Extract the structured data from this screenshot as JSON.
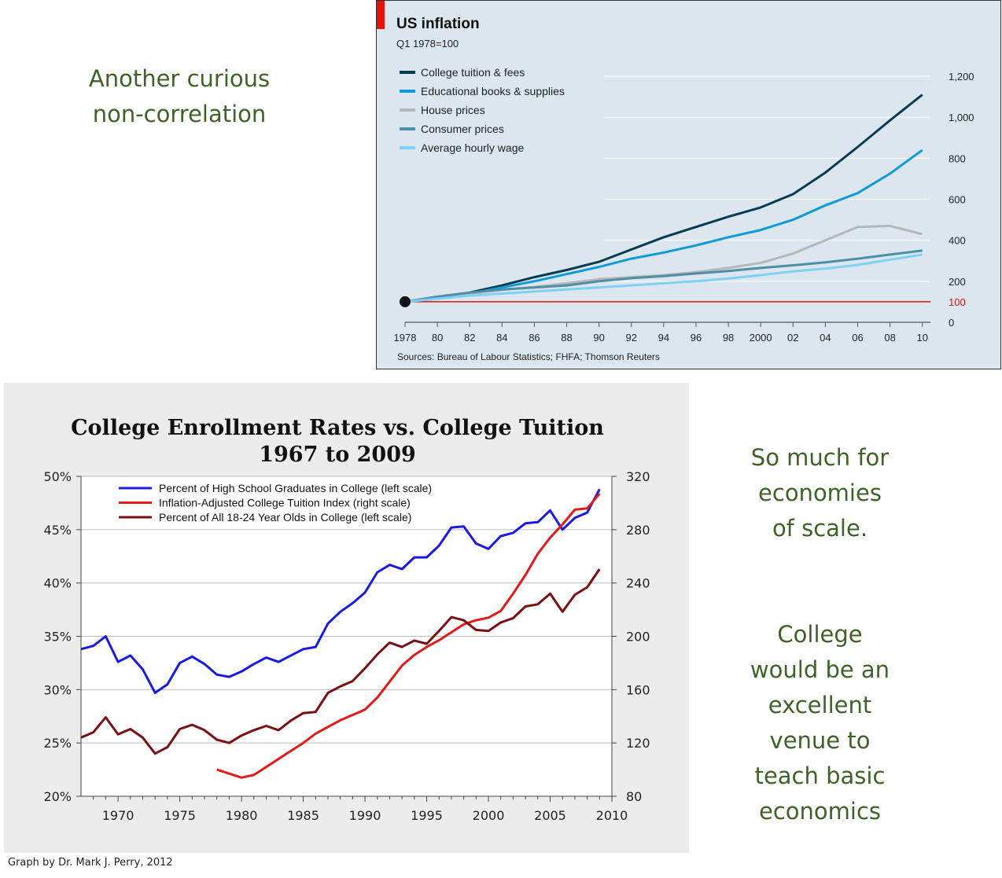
{
  "slide": {
    "heading_top": [
      "Another curious",
      "non-correlation"
    ],
    "heading_scale": [
      "So much for",
      "economies",
      "of scale."
    ],
    "heading_college": [
      "College",
      "would be an",
      "excellent",
      "venue to",
      "teach basic",
      "economics"
    ],
    "footer_credit": "Graph by Dr. Mark J. Perry, 2012"
  },
  "colors": {
    "heading_green": "#3f6228",
    "economist_bg": "#dbe6ee",
    "economist_red": "#e3120b",
    "tuition": "#073b52",
    "books": "#0f9ad7",
    "house": "#b5b7b9",
    "consumer": "#4f8ea6",
    "wage": "#7fd1f3",
    "hs_blue": "#1a1ae6",
    "tuition_red": "#e31a1a",
    "all_maroon": "#7a0f14"
  },
  "chart_data": [
    {
      "type": "line",
      "title": "US inflation",
      "subtitle": "Q1 1978=100",
      "source": "Sources: Bureau of Labour Statistics; FHFA; Thomson Reuters",
      "x": [
        1978,
        1980,
        1982,
        1984,
        1986,
        1988,
        1990,
        1992,
        1994,
        1996,
        1998,
        2000,
        2002,
        2004,
        2006,
        2008,
        2010
      ],
      "xticks": [
        "1978",
        "80",
        "82",
        "84",
        "86",
        "88",
        "90",
        "92",
        "94",
        "96",
        "98",
        "2000",
        "02",
        "04",
        "06",
        "08",
        "10"
      ],
      "yticks": [
        "0",
        "100",
        "200",
        "400",
        "600",
        "800",
        "1,000",
        "1,200"
      ],
      "ylim": [
        0,
        1200
      ],
      "xlim": [
        1978,
        2010.5
      ],
      "reference_line": 100,
      "legend_position": "top-left",
      "series": [
        {
          "name": "College tuition & fees",
          "color": "#073b52",
          "values": [
            100,
            118,
            145,
            180,
            220,
            255,
            295,
            355,
            415,
            465,
            515,
            560,
            625,
            730,
            855,
            985,
            1110
          ]
        },
        {
          "name": "Educational books & supplies",
          "color": "#0f9ad7",
          "values": [
            100,
            115,
            140,
            170,
            200,
            235,
            270,
            310,
            340,
            375,
            415,
            450,
            500,
            570,
            630,
            725,
            840
          ]
        },
        {
          "name": "House prices",
          "color": "#b5b7b9",
          "values": [
            100,
            118,
            140,
            158,
            172,
            190,
            210,
            220,
            230,
            245,
            265,
            290,
            335,
            400,
            465,
            470,
            430
          ]
        },
        {
          "name": "Consumer prices",
          "color": "#4f8ea6",
          "values": [
            100,
            125,
            145,
            160,
            170,
            180,
            200,
            215,
            225,
            238,
            250,
            265,
            278,
            292,
            310,
            330,
            350
          ]
        },
        {
          "name": "Average hourly wage",
          "color": "#7fd1f3",
          "values": [
            100,
            115,
            130,
            140,
            150,
            160,
            170,
            180,
            190,
            200,
            213,
            230,
            248,
            262,
            280,
            305,
            330
          ]
        }
      ]
    },
    {
      "type": "line",
      "title": "College Enrollment Rates vs. College Tuition",
      "subtitle": "1967 to 2009",
      "x_ticks": [
        "1970",
        "1975",
        "1980",
        "1985",
        "1990",
        "1995",
        "2000",
        "2005",
        "2010"
      ],
      "xlim": [
        1967,
        2010
      ],
      "y_left_ticks": [
        "20%",
        "25%",
        "30%",
        "35%",
        "40%",
        "45%",
        "50%"
      ],
      "y_left_lim": [
        20,
        50
      ],
      "y_right_ticks": [
        "80",
        "120",
        "160",
        "200",
        "240",
        "280",
        "320"
      ],
      "y_right_lim": [
        80,
        320
      ],
      "legend_position": "top-left",
      "series": [
        {
          "name": "Percent of High School Graduates in College (left scale)",
          "axis": "left",
          "color": "#1a1ae6",
          "start": 1967,
          "values": [
            33.8,
            34.1,
            35.0,
            32.6,
            33.2,
            31.9,
            29.7,
            30.5,
            32.5,
            33.1,
            32.4,
            31.4,
            31.2,
            31.7,
            32.4,
            33.0,
            32.6,
            33.2,
            33.8,
            34.0,
            36.2,
            37.3,
            38.1,
            39.1,
            41.0,
            41.7,
            41.3,
            42.4,
            42.4,
            43.5,
            45.2,
            45.3,
            43.7,
            43.2,
            44.4,
            44.7,
            45.6,
            45.7,
            46.8,
            45.0,
            46.1,
            46.6,
            48.8
          ]
        },
        {
          "name": "Inflation-Adjusted College Tuition Index (right scale)",
          "axis": "right",
          "color": "#e31a1a",
          "start": 1978,
          "values": [
            100,
            97,
            94,
            96,
            102,
            108,
            114,
            120,
            127,
            132,
            137,
            141,
            145,
            154,
            166,
            178,
            186,
            192,
            197,
            203,
            209,
            212,
            214,
            219,
            232,
            246,
            262,
            274,
            284,
            295,
            296,
            307
          ]
        },
        {
          "name": "Percent of All 18-24 Year Olds in College (left scale)",
          "axis": "left",
          "color": "#7a0f14",
          "start": 1967,
          "values": [
            25.5,
            26.0,
            27.4,
            25.8,
            26.3,
            25.5,
            24.0,
            24.6,
            26.3,
            26.7,
            26.2,
            25.3,
            25.0,
            25.7,
            26.2,
            26.6,
            26.2,
            27.1,
            27.8,
            27.9,
            29.7,
            30.3,
            30.8,
            32.0,
            33.3,
            34.4,
            34.0,
            34.6,
            34.3,
            35.5,
            36.8,
            36.5,
            35.6,
            35.5,
            36.3,
            36.7,
            37.8,
            38.0,
            39.0,
            37.3,
            38.9,
            39.6,
            41.3
          ]
        }
      ]
    }
  ]
}
